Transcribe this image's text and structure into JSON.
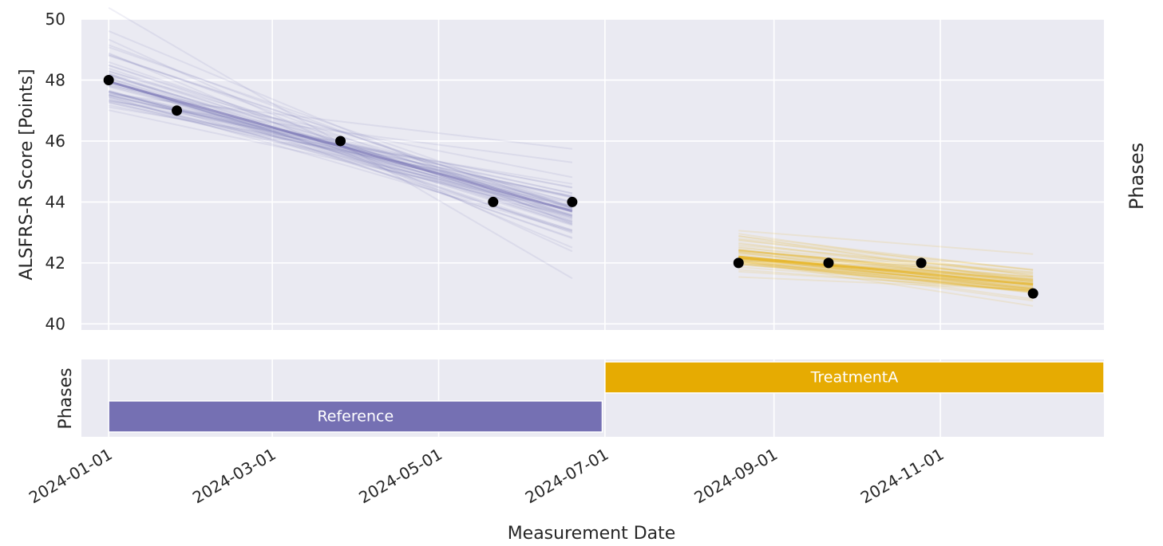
{
  "chart_data": [
    {
      "type": "scatter",
      "ylabel": "ALSFRS-R Score [Points]",
      "right_label": "Phases",
      "ylim": [
        39.8,
        50
      ],
      "xlim": [
        "2023-12-22",
        "2024-12-31"
      ],
      "yticks": [
        40,
        42,
        44,
        46,
        48,
        50
      ],
      "grid": true,
      "points": [
        {
          "x": "2024-01-01",
          "y": 48
        },
        {
          "x": "2024-01-26",
          "y": 47
        },
        {
          "x": "2024-03-26",
          "y": 46
        },
        {
          "x": "2024-05-21",
          "y": 44
        },
        {
          "x": "2024-06-19",
          "y": 44
        },
        {
          "x": "2024-08-19",
          "y": 42
        },
        {
          "x": "2024-09-21",
          "y": 42
        },
        {
          "x": "2024-10-25",
          "y": 42
        },
        {
          "x": "2024-12-05",
          "y": 41
        }
      ],
      "fits": [
        {
          "phase": "Reference",
          "x_start": "2024-01-01",
          "x_end": "2024-06-19",
          "y_start": 47.95,
          "y_end": 43.7,
          "color": "#7570b3"
        },
        {
          "phase": "TreatmentA",
          "x_start": "2024-08-19",
          "x_end": "2024-12-05",
          "y_start": 42.2,
          "y_end": 41.3,
          "color": "#e6ab02"
        }
      ]
    },
    {
      "type": "timeline",
      "ylabel": "Phases",
      "xlabel": "Measurement Date",
      "xticks": [
        "2024-01-01",
        "2024-03-01",
        "2024-05-01",
        "2024-07-01",
        "2024-09-01",
        "2024-11-01"
      ],
      "phases": [
        {
          "name": "Reference",
          "start": "2024-01-01",
          "end": "2024-06-30",
          "level": 0,
          "color": "#7570b3"
        },
        {
          "name": "TreatmentA",
          "start": "2024-07-01",
          "end": "2024-12-31",
          "level": 1,
          "color": "#e6ab02"
        }
      ]
    }
  ]
}
